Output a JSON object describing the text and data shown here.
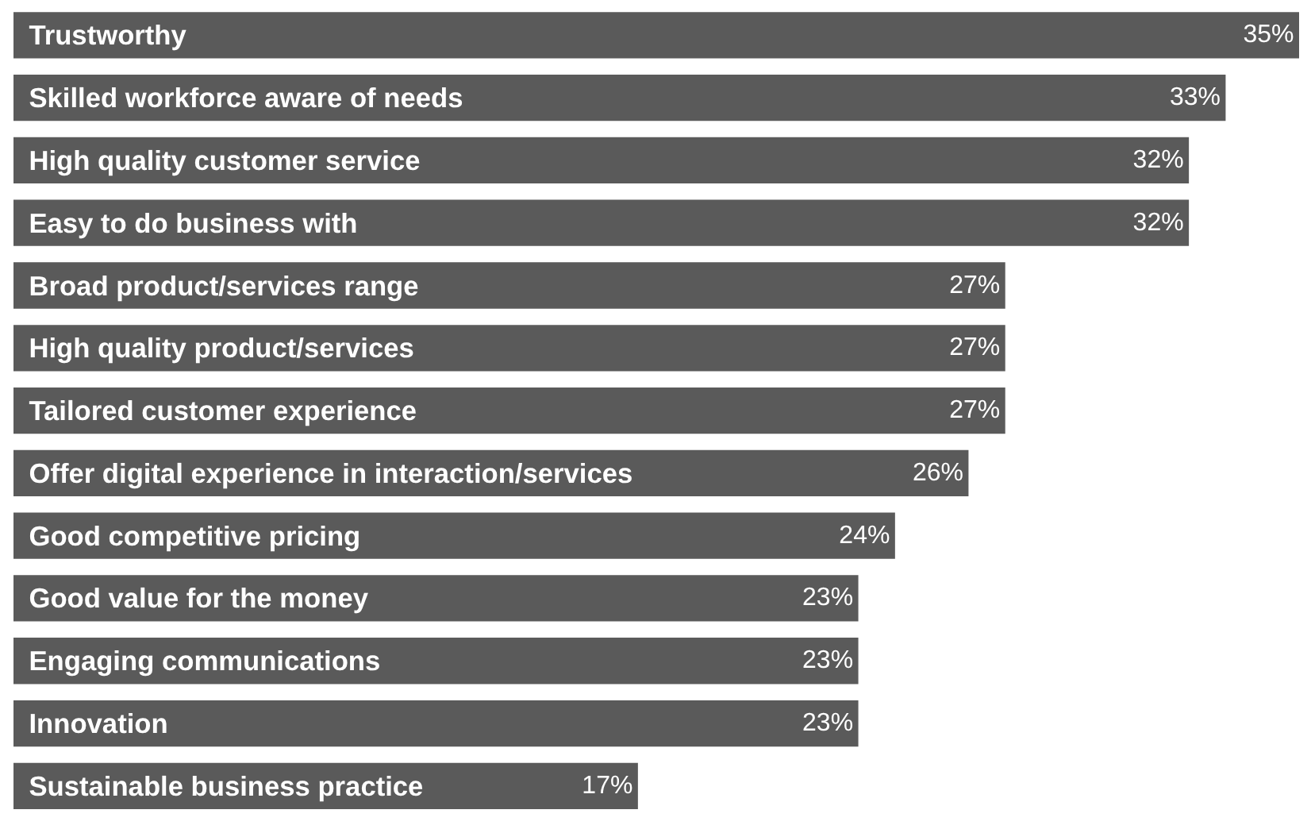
{
  "chart_data": {
    "type": "bar",
    "orientation": "horizontal",
    "categories": [
      "Trustworthy",
      "Skilled workforce aware of needs",
      "High quality customer service",
      "Easy to do business with",
      "Broad product/services range",
      "High quality product/services",
      "Tailored customer experience",
      "Offer digital experience in interaction/services",
      "Good competitive pricing",
      "Good value for the money",
      "Engaging communications",
      "Innovation",
      "Sustainable business practice"
    ],
    "values": [
      35,
      33,
      32,
      32,
      27,
      27,
      27,
      26,
      24,
      23,
      23,
      23,
      17
    ],
    "value_labels": [
      "35%",
      "33%",
      "32%",
      "32%",
      "27%",
      "27%",
      "27%",
      "26%",
      "24%",
      "23%",
      "23%",
      "23%",
      "17%"
    ],
    "color": "#5a5a5a"
  }
}
